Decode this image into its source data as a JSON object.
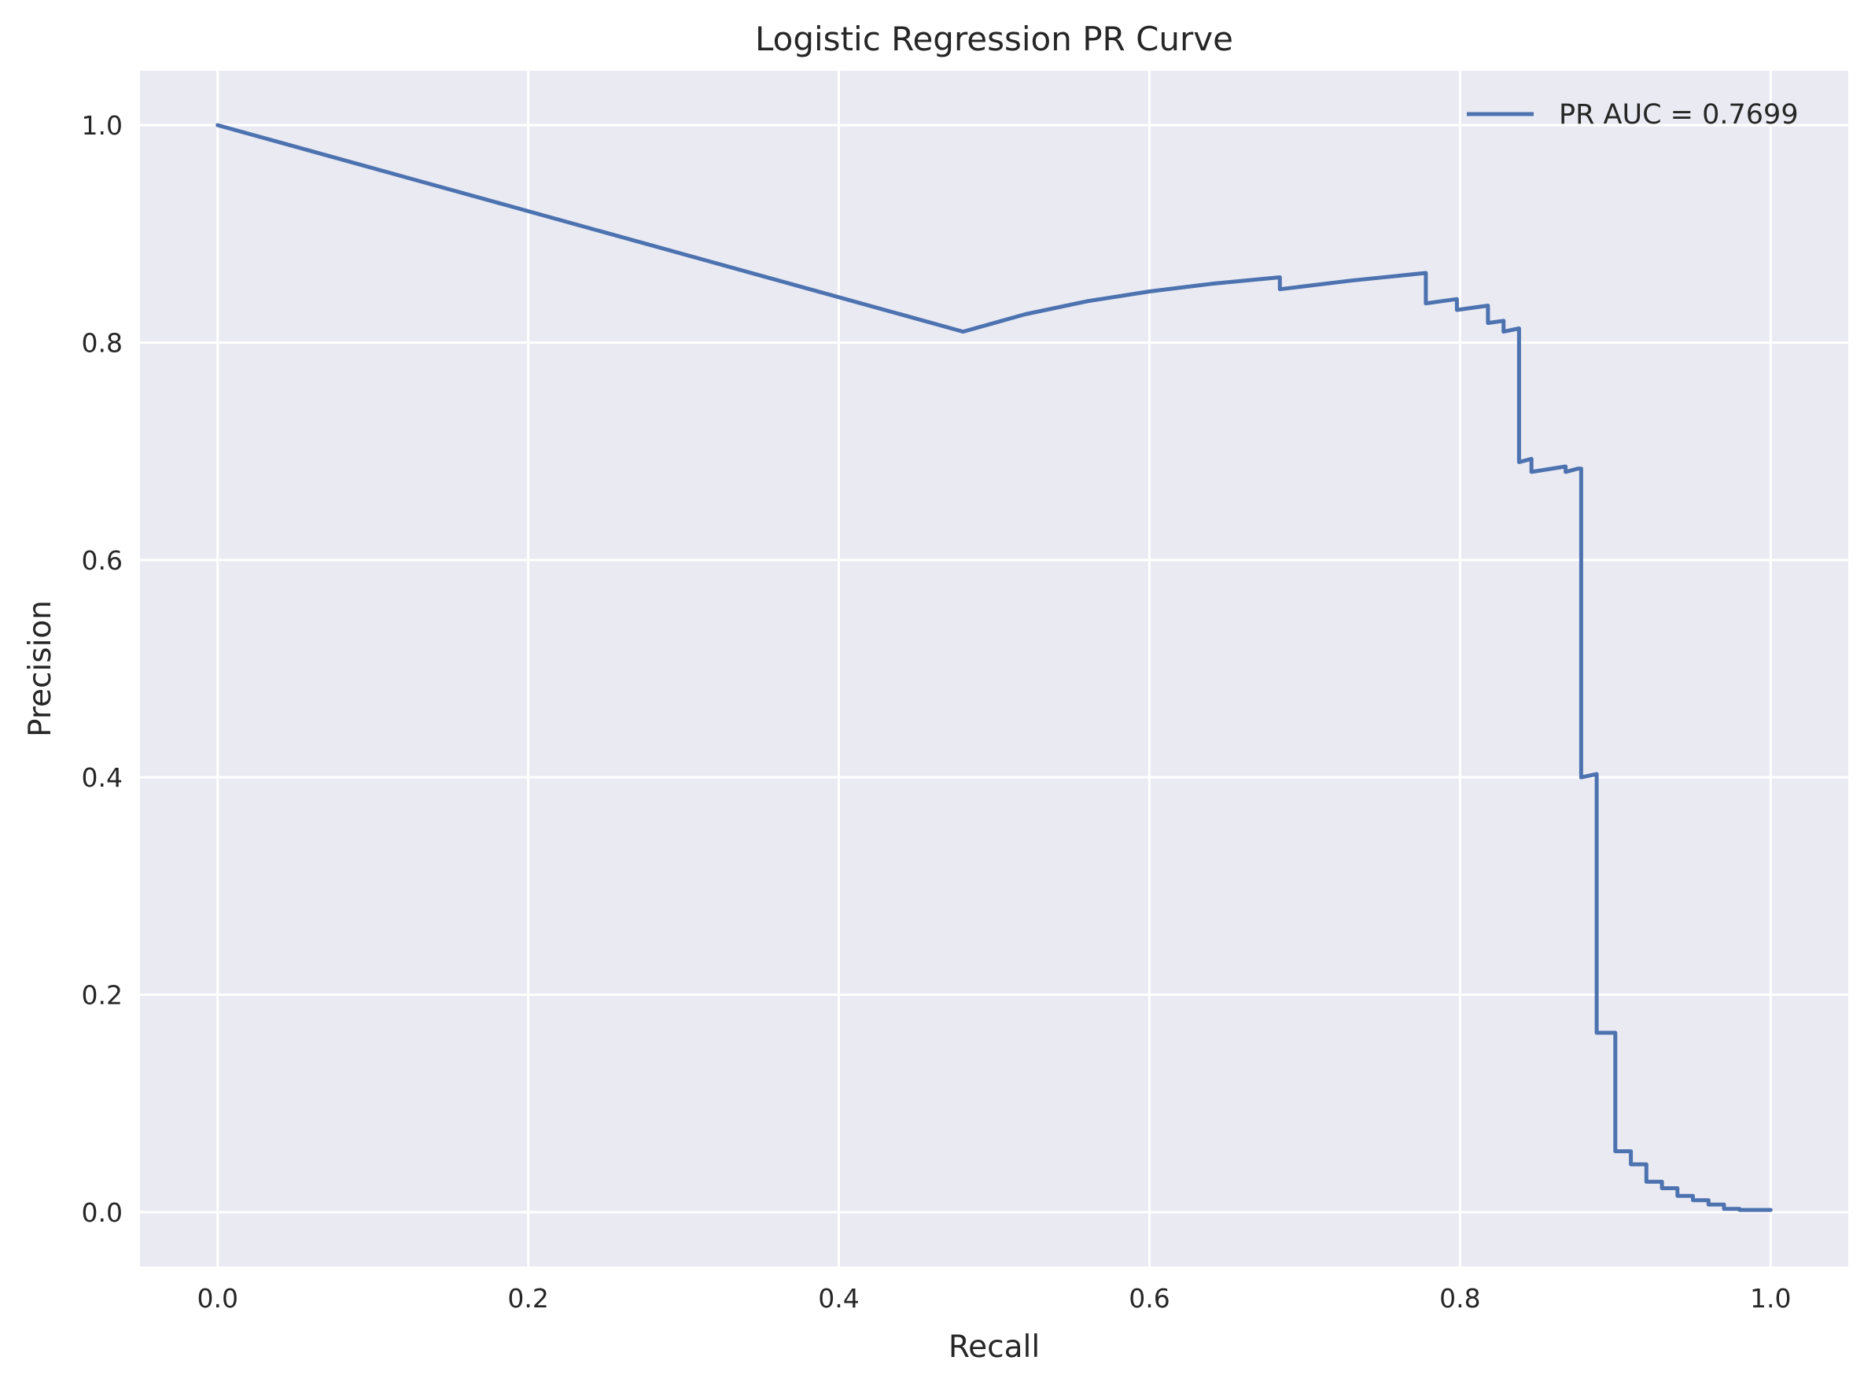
{
  "chart_data": {
    "type": "line",
    "title": "Logistic Regression PR Curve",
    "xlabel": "Recall",
    "ylabel": "Precision",
    "xlim": [
      -0.05,
      1.05
    ],
    "ylim": [
      -0.05,
      1.05
    ],
    "xticks": [
      0.0,
      0.2,
      0.4,
      0.6,
      0.8,
      1.0
    ],
    "yticks": [
      0.0,
      0.2,
      0.4,
      0.6,
      0.8,
      1.0
    ],
    "xtick_labels": [
      "0.0",
      "0.2",
      "0.4",
      "0.6",
      "0.8",
      "1.0"
    ],
    "ytick_labels": [
      "0.0",
      "0.2",
      "0.4",
      "0.6",
      "0.8",
      "1.0"
    ],
    "grid": true,
    "legend_position": "top-right",
    "colors": {
      "background": "#eaeaf2",
      "grid": "#ffffff",
      "line": "#4c72b0"
    },
    "series": [
      {
        "name": "PR AUC = 0.7699",
        "x": [
          0.0,
          0.48,
          0.52,
          0.56,
          0.6,
          0.64,
          0.684,
          0.684,
          0.73,
          0.778,
          0.778,
          0.798,
          0.798,
          0.818,
          0.818,
          0.828,
          0.828,
          0.838,
          0.838,
          0.846,
          0.846,
          0.868,
          0.868,
          0.876,
          0.878,
          0.878,
          0.888,
          0.888,
          0.9,
          0.9,
          0.91,
          0.91,
          0.92,
          0.92,
          0.93,
          0.93,
          0.94,
          0.94,
          0.95,
          0.95,
          0.96,
          0.96,
          0.97,
          0.97,
          0.98,
          0.98,
          1.0
        ],
        "y": [
          1.0,
          0.81,
          0.826,
          0.838,
          0.847,
          0.854,
          0.86,
          0.849,
          0.857,
          0.864,
          0.836,
          0.84,
          0.83,
          0.834,
          0.818,
          0.82,
          0.81,
          0.813,
          0.69,
          0.693,
          0.681,
          0.686,
          0.681,
          0.684,
          0.684,
          0.4,
          0.403,
          0.165,
          0.165,
          0.056,
          0.056,
          0.044,
          0.044,
          0.028,
          0.028,
          0.022,
          0.022,
          0.015,
          0.015,
          0.011,
          0.011,
          0.007,
          0.007,
          0.003,
          0.003,
          0.002,
          0.002
        ]
      }
    ]
  }
}
